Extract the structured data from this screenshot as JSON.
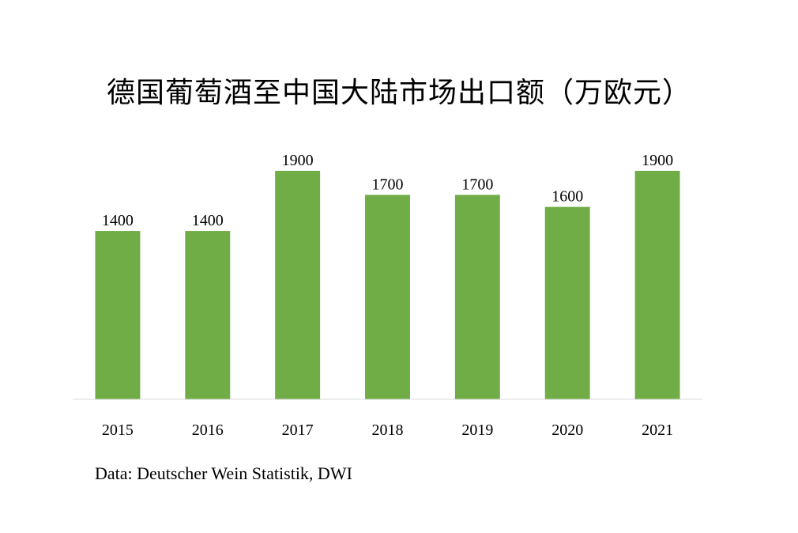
{
  "chart_data": {
    "type": "bar",
    "title": "德国葡萄酒至中国大陆市场出口额（万欧元）",
    "categories": [
      "2015",
      "2016",
      "2017",
      "2018",
      "2019",
      "2020",
      "2021"
    ],
    "values": [
      1400,
      1400,
      1900,
      1700,
      1700,
      1600,
      1900
    ],
    "data_labels": [
      "1400",
      "1400",
      "1900",
      "1700",
      "1700",
      "1600",
      "1900"
    ],
    "xlabel": "",
    "ylabel": "",
    "ylim": [
      0,
      1900
    ],
    "grid": false,
    "legend": "none",
    "bar_color": "#70ad47",
    "source": "Data: Deutscher Wein Statistik, DWI"
  }
}
